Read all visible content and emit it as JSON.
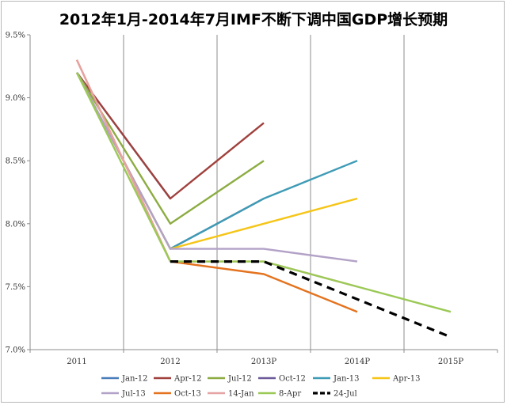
{
  "chart_data": {
    "type": "line",
    "title": "2012年1月-2014年7月IMF不断下调中国GDP增长预期",
    "xlabel": "",
    "ylabel": "",
    "categories": [
      "2011",
      "2012",
      "2013P",
      "2014P",
      "2015P"
    ],
    "ylim": [
      7.0,
      9.5
    ],
    "yticks": [
      7.0,
      7.5,
      8.0,
      8.5,
      9.0,
      9.5
    ],
    "ytick_labels": [
      "7.0%",
      "7.5%",
      "8.0%",
      "8.5%",
      "9.0%",
      "9.5%"
    ],
    "grid": "vertical",
    "legend_position": "bottom",
    "series": [
      {
        "name": "Jan-12",
        "color": "#4a7ebb",
        "dashed": false,
        "values": [
          9.2,
          8.2,
          null,
          null,
          null
        ]
      },
      {
        "name": "Apr-12",
        "color": "#a0413d",
        "dashed": false,
        "values": [
          9.2,
          8.2,
          8.8,
          null,
          null
        ]
      },
      {
        "name": "Jul-12",
        "color": "#8cac42",
        "dashed": false,
        "values": [
          9.2,
          8.0,
          8.5,
          null,
          null
        ]
      },
      {
        "name": "Oct-12",
        "color": "#6d5a9a",
        "dashed": false,
        "values": [
          9.2,
          7.8,
          8.2,
          null,
          null
        ]
      },
      {
        "name": "Jan-13",
        "color": "#3e9bb5",
        "dashed": false,
        "values": [
          9.2,
          7.8,
          8.2,
          8.5,
          null
        ]
      },
      {
        "name": "Apr-13",
        "color": "#f5c518",
        "dashed": false,
        "values": [
          9.2,
          7.8,
          8.0,
          8.2,
          null
        ]
      },
      {
        "name": "Jul-13",
        "color": "#b3a2c7",
        "dashed": false,
        "values": [
          9.2,
          7.8,
          7.8,
          7.7,
          null
        ]
      },
      {
        "name": "Oct-13",
        "color": "#e4731f",
        "dashed": false,
        "values": [
          9.3,
          7.7,
          7.6,
          7.3,
          null
        ]
      },
      {
        "name": "14-Jan",
        "color": "#e6a3a3",
        "dashed": false,
        "values": [
          9.3,
          7.7,
          7.7,
          7.5,
          null
        ]
      },
      {
        "name": "8-Apr",
        "color": "#9bc956",
        "dashed": false,
        "values": [
          9.2,
          7.7,
          7.7,
          7.5,
          7.3
        ]
      },
      {
        "name": "24-Jul",
        "color": "#000000",
        "dashed": true,
        "values": [
          null,
          7.7,
          7.7,
          7.4,
          7.1
        ]
      }
    ]
  }
}
